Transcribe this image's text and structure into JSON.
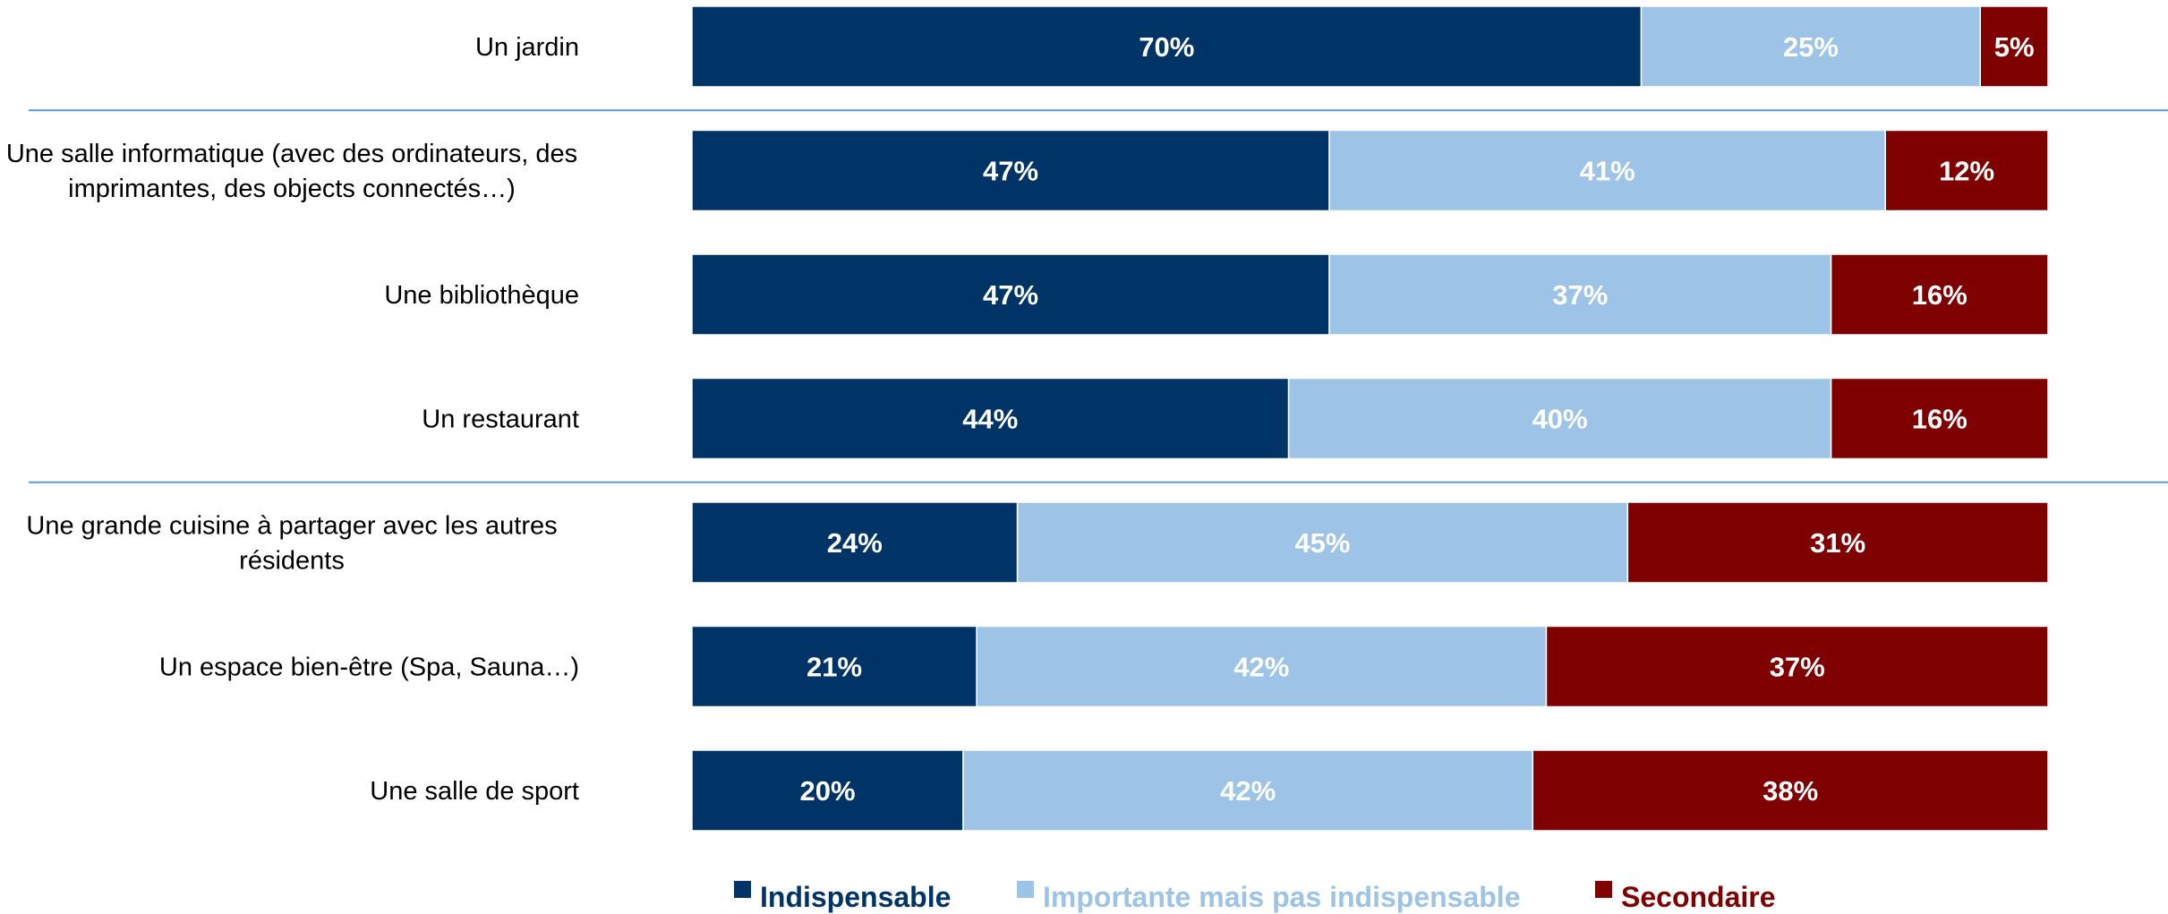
{
  "chart_data": {
    "type": "bar",
    "orientation": "horizontal",
    "stacked": true,
    "percent": true,
    "categories": [
      [
        "Un jardin"
      ],
      [
        "Une salle informatique (avec des ordinateurs, des",
        "imprimantes, des objects connectés…)"
      ],
      [
        "Une bibliothèque"
      ],
      [
        "Un restaurant"
      ],
      [
        "Une grande cuisine à partager avec les autres",
        "résidents"
      ],
      [
        "Un espace bien-être (Spa, Sauna…)"
      ],
      [
        "Une salle de sport"
      ]
    ],
    "series": [
      {
        "name": "Indispensable",
        "color": "#003366",
        "values": [
          70,
          47,
          47,
          44,
          24,
          21,
          20
        ]
      },
      {
        "name": "Importante mais pas indispensable",
        "color": "#9DC3E6",
        "values": [
          25,
          41,
          37,
          40,
          45,
          42,
          42
        ]
      },
      {
        "name": "Secondaire",
        "color": "#7F0000",
        "values": [
          5,
          12,
          16,
          16,
          31,
          37,
          38
        ]
      }
    ],
    "xlim": [
      0,
      100
    ],
    "value_suffix": "%",
    "legend": "bottom",
    "separator_after_rows": [
      0,
      3
    ],
    "separator_color": "#5B9BD5"
  }
}
